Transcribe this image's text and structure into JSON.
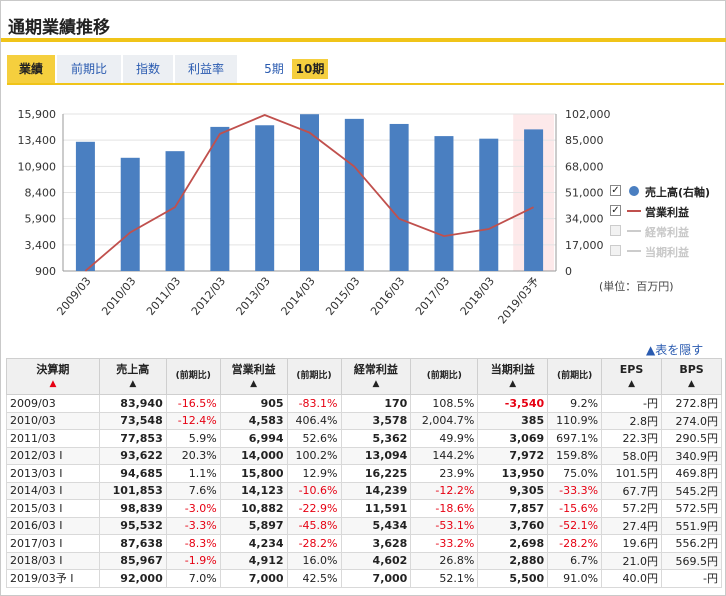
{
  "page": {
    "title": "通期業績推移"
  },
  "tabs": [
    {
      "label": "業績",
      "active": true
    },
    {
      "label": "前期比",
      "active": false
    },
    {
      "label": "指数",
      "active": false
    },
    {
      "label": "利益率",
      "active": false
    }
  ],
  "periods": [
    {
      "label": "5期",
      "active": false
    },
    {
      "label": "10期",
      "active": true
    }
  ],
  "colors": {
    "accent": "#f0c419",
    "bar": "#4a7fc1",
    "line": "#c0504d",
    "forecast_bg": "#fde9ea",
    "negative": "#e60012",
    "link": "#2a5bb0"
  },
  "chart_data": {
    "type": "bar",
    "categories": [
      "2009/03",
      "2010/03",
      "2011/03",
      "2012/03",
      "2013/03",
      "2014/03",
      "2015/03",
      "2016/03",
      "2017/03",
      "2018/03",
      "2019/03予"
    ],
    "series": [
      {
        "name": "売上高(右軸)",
        "type": "bar",
        "axis": "right",
        "values": [
          83940,
          73548,
          77853,
          93622,
          94685,
          101853,
          98839,
          95532,
          87638,
          85967,
          92000
        ]
      },
      {
        "name": "営業利益",
        "type": "line",
        "axis": "left",
        "values": [
          905,
          4583,
          6994,
          14000,
          15800,
          14123,
          10882,
          5897,
          4234,
          4912,
          7000
        ]
      }
    ],
    "left_axis": {
      "ylim": [
        900,
        15900
      ],
      "ticks": [
        "15,900",
        "13,400",
        "10,900",
        "8,400",
        "5,900",
        "3,400",
        "900"
      ]
    },
    "right_axis": {
      "ylim": [
        0,
        102000
      ],
      "ticks": [
        "102,000",
        "85,000",
        "68,000",
        "51,000",
        "34,000",
        "17,000",
        "0"
      ]
    },
    "forecast_highlight": "2019/03予",
    "legend": [
      {
        "label": "売上高(右軸)",
        "checked": true,
        "enabled": true,
        "symbol": "circle"
      },
      {
        "label": "営業利益",
        "checked": true,
        "enabled": true,
        "symbol": "line"
      },
      {
        "label": "経常利益",
        "checked": false,
        "enabled": false,
        "symbol": "line"
      },
      {
        "label": "当期利益",
        "checked": false,
        "enabled": false,
        "symbol": "line"
      }
    ],
    "legend_position": "right",
    "unit": "(単位：百万円)"
  },
  "hide_link": "▲表を隠す",
  "table": {
    "headers": [
      "決算期",
      "売上高",
      "(前期比)",
      "営業利益",
      "(前期比)",
      "経常利益",
      "(前期比)",
      "当期利益",
      "(前期比)",
      "EPS",
      "BPS"
    ],
    "header_arrows": [
      "▲",
      "▲",
      "",
      "▲",
      "",
      "▲",
      "",
      "▲",
      "",
      "▲",
      "▲"
    ],
    "rows": [
      [
        "2009/03",
        "83,940",
        "-16.5%",
        "905",
        "-83.1%",
        "170",
        "108.5%",
        "-3,540",
        "9.2%",
        "-円",
        "272.8円"
      ],
      [
        "2010/03",
        "73,548",
        "-12.4%",
        "4,583",
        "406.4%",
        "3,578",
        "2,004.7%",
        "385",
        "110.9%",
        "2.8円",
        "274.0円"
      ],
      [
        "2011/03",
        "77,853",
        "5.9%",
        "6,994",
        "52.6%",
        "5,362",
        "49.9%",
        "3,069",
        "697.1%",
        "22.3円",
        "290.5円"
      ],
      [
        "2012/03 I",
        "93,622",
        "20.3%",
        "14,000",
        "100.2%",
        "13,094",
        "144.2%",
        "7,972",
        "159.8%",
        "58.0円",
        "340.9円"
      ],
      [
        "2013/03 I",
        "94,685",
        "1.1%",
        "15,800",
        "12.9%",
        "16,225",
        "23.9%",
        "13,950",
        "75.0%",
        "101.5円",
        "469.8円"
      ],
      [
        "2014/03 I",
        "101,853",
        "7.6%",
        "14,123",
        "-10.6%",
        "14,239",
        "-12.2%",
        "9,305",
        "-33.3%",
        "67.7円",
        "545.2円"
      ],
      [
        "2015/03 I",
        "98,839",
        "-3.0%",
        "10,882",
        "-22.9%",
        "11,591",
        "-18.6%",
        "7,857",
        "-15.6%",
        "57.2円",
        "572.5円"
      ],
      [
        "2016/03 I",
        "95,532",
        "-3.3%",
        "5,897",
        "-45.8%",
        "5,434",
        "-53.1%",
        "3,760",
        "-52.1%",
        "27.4円",
        "551.9円"
      ],
      [
        "2017/03 I",
        "87,638",
        "-8.3%",
        "4,234",
        "-28.2%",
        "3,628",
        "-33.2%",
        "2,698",
        "-28.2%",
        "19.6円",
        "556.2円"
      ],
      [
        "2018/03 I",
        "85,967",
        "-1.9%",
        "4,912",
        "16.0%",
        "4,602",
        "26.8%",
        "2,880",
        "6.7%",
        "21.0円",
        "569.5円"
      ],
      [
        "2019/03予 I",
        "92,000",
        "7.0%",
        "7,000",
        "42.5%",
        "7,000",
        "52.1%",
        "5,500",
        "91.0%",
        "40.0円",
        "-円"
      ]
    ]
  }
}
